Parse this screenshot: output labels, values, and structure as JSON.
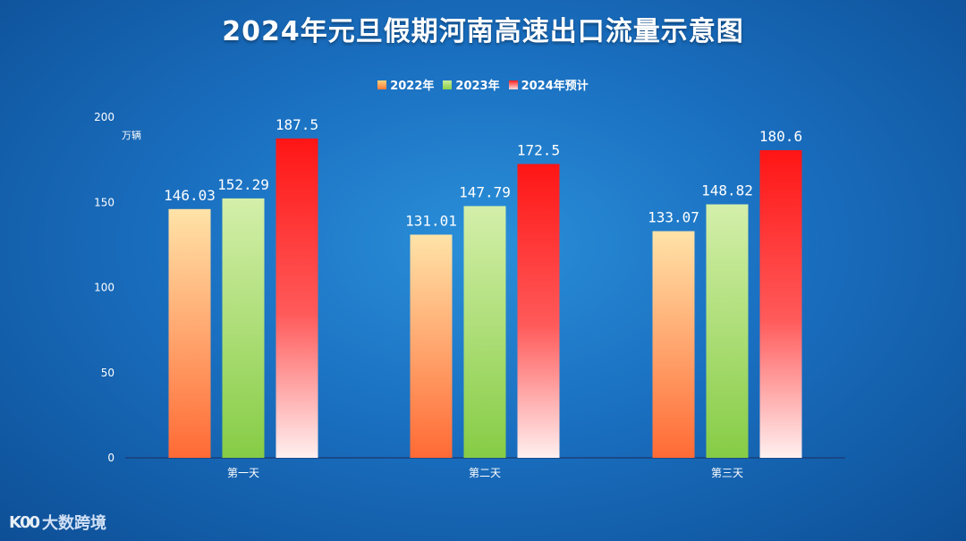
{
  "chart_data": {
    "type": "bar",
    "title": "2024年元旦假期河南高速出口流量示意图",
    "ylabel": "万辆",
    "categories": [
      "第一天",
      "第二天",
      "第三天"
    ],
    "series": [
      {
        "name": "2022年",
        "values": [
          146.03,
          131.01,
          133.07
        ],
        "value_labels": [
          "146.03",
          "131.01",
          "133.07"
        ]
      },
      {
        "name": "2023年",
        "values": [
          152.29,
          147.79,
          148.82
        ],
        "value_labels": [
          "152.29",
          "147.79",
          "148.82"
        ]
      },
      {
        "name": "2024年预计",
        "values": [
          187.5,
          172.5,
          180.6
        ],
        "value_labels": [
          "187.5",
          "172.5",
          "180.6"
        ]
      }
    ],
    "ylim": [
      0,
      200
    ],
    "yticks": [
      0,
      50,
      100,
      150,
      200
    ],
    "ytick_labels": [
      "0",
      "50",
      "100",
      "150",
      "200"
    ],
    "grid": false,
    "legend_position": "top-center"
  },
  "watermark": {
    "logo": "K00",
    "text": "大数跨境"
  },
  "colors": {
    "series_2022": "#ff7a3c",
    "series_2023": "#8ad04a",
    "series_2024": "#ff2020",
    "axis": "#1a3f7a",
    "background": "#1a6fc0"
  }
}
